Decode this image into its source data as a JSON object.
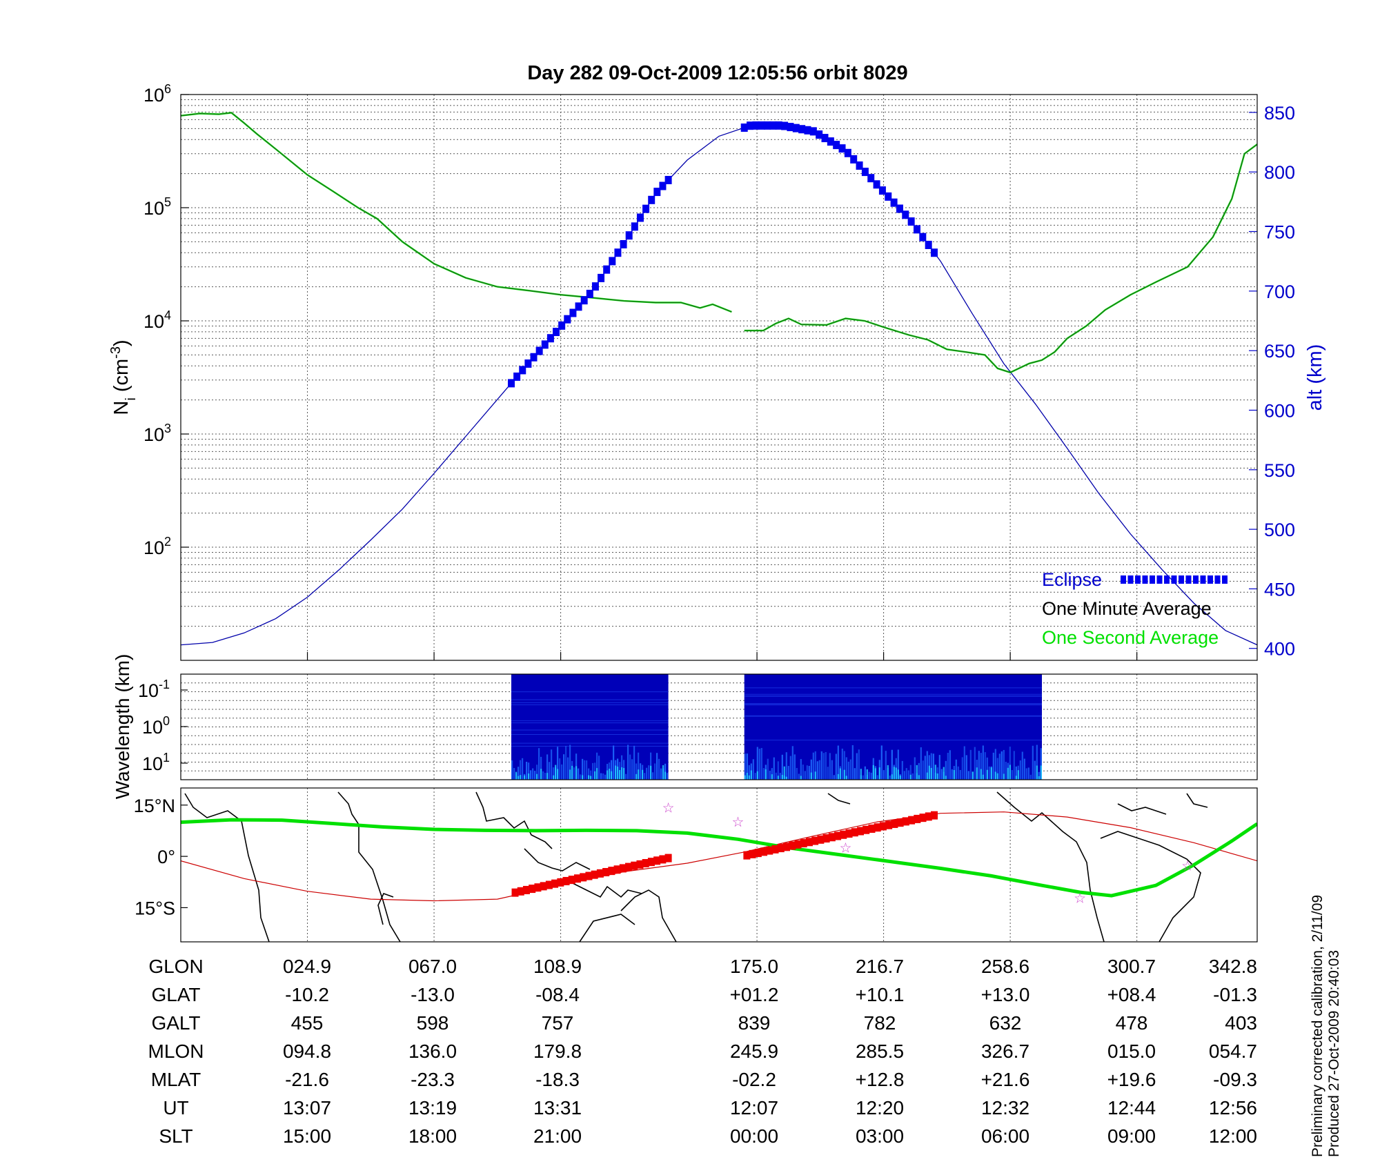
{
  "chart_data": [
    {
      "type": "line",
      "title": "Day 282  09-Oct-2009 12:05:56   orbit 8029",
      "ylabel": "N_i (cm^-3)",
      "y_scale": "log",
      "ylim": [
        10,
        1000000
      ],
      "y_ticks": [
        {
          "value": 100,
          "base": "10",
          "exp": "2"
        },
        {
          "value": 1000,
          "base": "10",
          "exp": "3"
        },
        {
          "value": 10000,
          "base": "10",
          "exp": "4"
        },
        {
          "value": 100000,
          "base": "10",
          "exp": "5"
        },
        {
          "value": 1000000,
          "base": "10",
          "exp": "6"
        }
      ],
      "y2label": "alt (km)",
      "y2lim": [
        390,
        865
      ],
      "y2_ticks": [
        "400",
        "450",
        "500",
        "550",
        "600",
        "650",
        "700",
        "750",
        "800",
        "850"
      ],
      "xlim": [
        0,
        8.5
      ],
      "legend": [
        "Eclipse",
        "One Minute Average",
        "One Second Average"
      ],
      "legend_position": "bottom-right",
      "colors": {
        "density": "#1f6a1f",
        "density_second": "#00ee00",
        "altitude": "#0000aa",
        "eclipse": "#0000ee"
      },
      "series": [
        {
          "name": "One Minute Average",
          "axis": "left",
          "segments": [
            [
              [
                0,
                650000
              ],
              [
                0.15,
                680000
              ],
              [
                0.3,
                670000
              ],
              [
                0.4,
                690000
              ],
              [
                0.5,
                560000
              ],
              [
                0.6,
                450000
              ],
              [
                0.75,
                330000
              ],
              [
                1.0,
                195000
              ],
              [
                1.2,
                140000
              ],
              [
                1.4,
                100000
              ],
              [
                1.55,
                80000
              ],
              [
                1.75,
                50000
              ],
              [
                2.0,
                32000
              ],
              [
                2.25,
                24000
              ],
              [
                2.5,
                20000
              ],
              [
                2.75,
                18500
              ],
              [
                3.0,
                17000
              ],
              [
                3.25,
                16000
              ],
              [
                3.5,
                15000
              ],
              [
                3.75,
                14500
              ],
              [
                3.95,
                14500
              ],
              [
                4.1,
                13000
              ],
              [
                4.2,
                14000
              ],
              [
                4.35,
                12000
              ]
            ],
            [
              [
                4.45,
                8200
              ],
              [
                4.6,
                8200
              ],
              [
                4.7,
                9500
              ],
              [
                4.8,
                10500
              ],
              [
                4.9,
                9300
              ],
              [
                5.1,
                9200
              ],
              [
                5.25,
                10500
              ],
              [
                5.4,
                10000
              ],
              [
                5.55,
                8800
              ],
              [
                5.75,
                7500
              ],
              [
                5.9,
                6800
              ],
              [
                6.05,
                5600
              ],
              [
                6.2,
                5300
              ],
              [
                6.35,
                5000
              ],
              [
                6.45,
                3800
              ],
              [
                6.55,
                3500
              ],
              [
                6.7,
                4200
              ],
              [
                6.8,
                4500
              ],
              [
                6.9,
                5300
              ],
              [
                7.0,
                7000
              ],
              [
                7.15,
                9000
              ],
              [
                7.3,
                12500
              ],
              [
                7.5,
                17000
              ],
              [
                7.7,
                22000
              ],
              [
                7.95,
                30000
              ],
              [
                8.15,
                55000
              ],
              [
                8.3,
                120000
              ],
              [
                8.4,
                300000
              ],
              [
                8.55,
                400000
              ],
              [
                8.75,
                540000
              ]
            ]
          ]
        },
        {
          "name": "altitude",
          "axis": "right",
          "x": [
            0,
            0.25,
            0.5,
            0.75,
            1.0,
            1.25,
            1.5,
            1.75,
            2.0,
            2.25,
            2.5,
            2.75,
            3.0,
            3.25,
            3.5,
            3.75,
            4.0,
            4.25,
            4.5,
            4.75,
            5.0,
            5.25,
            5.5,
            5.75,
            6.0,
            6.25,
            6.5,
            6.75,
            7.0,
            7.25,
            7.5,
            7.75,
            8.0,
            8.25,
            8.5
          ],
          "y": [
            403,
            405,
            413,
            425,
            443,
            466,
            491,
            517,
            547,
            578,
            609,
            640,
            670,
            700,
            740,
            782,
            810,
            830,
            839,
            839,
            834,
            818,
            789,
            761,
            725,
            681,
            639,
            605,
            568,
            530,
            496,
            466,
            438,
            415,
            403
          ]
        }
      ],
      "eclipse_segments": [
        [
          2.61,
          3.85
        ],
        [
          4.45,
          5.95
        ]
      ]
    },
    {
      "type": "heatmap",
      "ylabel": "Wavelength (km)",
      "y_scale": "log",
      "y_ticks": [
        {
          "base": "10",
          "exp": "-1"
        },
        {
          "base": "10",
          "exp": "0"
        },
        {
          "base": "10",
          "exp": "1"
        }
      ],
      "data_blocks": [
        [
          2.61,
          3.85
        ],
        [
          4.45,
          6.8
        ]
      ],
      "colors": {
        "background": "#0000b8",
        "mid": "#1f6fff",
        "high": "#22d6ff"
      }
    },
    {
      "type": "map",
      "ylabel_ticks": [
        "15°N",
        "0°",
        "15°S"
      ],
      "ylim": [
        -25,
        20
      ],
      "colors": {
        "magnetic_equator": "#00e000",
        "ground_track": "#cc0000",
        "eclipse_track": "#ee0000",
        "coast": "#000000",
        "stars": "#cc44cc"
      },
      "magnetic_equator": [
        [
          0,
          10
        ],
        [
          0.4,
          10.7
        ],
        [
          0.8,
          10.6
        ],
        [
          1.2,
          9.6
        ],
        [
          1.6,
          8.6
        ],
        [
          2.0,
          7.9
        ],
        [
          2.4,
          7.6
        ],
        [
          2.8,
          7.5
        ],
        [
          3.2,
          7.6
        ],
        [
          3.6,
          7.5
        ],
        [
          4.0,
          6.8
        ],
        [
          4.4,
          5.0
        ],
        [
          4.8,
          2.5
        ],
        [
          5.2,
          0.5
        ],
        [
          5.6,
          -1.5
        ],
        [
          6.0,
          -3.5
        ],
        [
          6.4,
          -5.7
        ],
        [
          6.8,
          -8.5
        ],
        [
          7.1,
          -10.5
        ],
        [
          7.35,
          -11.5
        ],
        [
          7.7,
          -8.5
        ],
        [
          8.0,
          -2.5
        ],
        [
          8.3,
          4.5
        ],
        [
          8.5,
          9.5
        ]
      ],
      "ground_track": [
        [
          0,
          -1.3
        ],
        [
          0.5,
          -6.5
        ],
        [
          1.0,
          -10.2
        ],
        [
          1.5,
          -12.5
        ],
        [
          2.0,
          -13.0
        ],
        [
          2.5,
          -12.5
        ],
        [
          3.0,
          -8.4
        ],
        [
          3.5,
          -4.5
        ],
        [
          4.0,
          -2.0
        ],
        [
          4.44,
          1.2
        ],
        [
          5.0,
          6.0
        ],
        [
          5.5,
          10.1
        ],
        [
          6.0,
          12.6
        ],
        [
          6.5,
          13.0
        ],
        [
          7.0,
          11.5
        ],
        [
          7.5,
          8.4
        ],
        [
          8.0,
          4.0
        ],
        [
          8.5,
          -1.3
        ]
      ],
      "eclipse_tracks": [
        [
          [
            2.64,
            -10.6
          ],
          [
            3.85,
            -0.5
          ]
        ],
        [
          [
            4.47,
            0.3
          ],
          [
            5.95,
            12.0
          ]
        ]
      ],
      "stars": [
        [
          3.85,
          14.5
        ],
        [
          4.4,
          10.3
        ],
        [
          5.25,
          2.7
        ],
        [
          7.1,
          -12.0
        ],
        [
          7.95,
          -2.5
        ]
      ]
    }
  ],
  "table": {
    "row_labels": [
      "GLON",
      "GLAT",
      "GALT",
      "MLON",
      "MLAT",
      "UT",
      "SLT"
    ],
    "columns": [
      [
        "024.9",
        "-10.2",
        "455",
        "094.8",
        "-21.6",
        "13:07",
        "15:00"
      ],
      [
        "067.0",
        "-13.0",
        "598",
        "136.0",
        "-23.3",
        "13:19",
        "18:00"
      ],
      [
        "108.9",
        "-08.4",
        "757",
        "179.8",
        "-18.3",
        "13:31",
        "21:00"
      ],
      [
        "175.0",
        "+01.2",
        "839",
        "245.9",
        "-02.2",
        "12:07",
        "00:00"
      ],
      [
        "216.7",
        "+10.1",
        "782",
        "285.5",
        "+12.8",
        "12:20",
        "03:00"
      ],
      [
        "258.6",
        "+13.0",
        "632",
        "326.7",
        "+21.6",
        "12:32",
        "06:00"
      ],
      [
        "300.7",
        "+08.4",
        "478",
        "015.0",
        "+19.6",
        "12:44",
        "09:00"
      ],
      [
        "342.8",
        "-01.3",
        "403",
        "054.7",
        "-09.3",
        "12:56",
        "12:00"
      ]
    ]
  },
  "footnote": {
    "line1": "Preliminary corrected calibration, 2/11/09",
    "line2": "Produced 27-Oct-2009 20:40:03"
  }
}
